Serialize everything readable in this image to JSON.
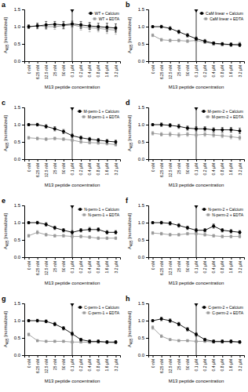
{
  "chart_data": [
    {
      "type": "line",
      "title": "a",
      "x_label": "M13 peptide concentration",
      "y_label": "A465 [normalized]",
      "categories": [
        "0 nM",
        "6.25 nM",
        "12.5 nM",
        "25 nM",
        "50 nM",
        "0.1 µM",
        "0.2 µM",
        "0.4 µM",
        "0.8 µM",
        "1.6 µM",
        "3.2 µM"
      ],
      "ylim": [
        0,
        1.5
      ],
      "yticks": [
        {
          "value": 0,
          "label": "0.0"
        },
        0.5,
        {
          "value": 1,
          "label": "1.0"
        },
        1.5
      ],
      "grid": false,
      "legend": "upper right",
      "series": [
        {
          "name": "WT + Calcium",
          "color": "#000000",
          "marker": "circle",
          "values": [
            1.0,
            1.02,
            1.05,
            1.07,
            1.05,
            1.08,
            1.05,
            1.02,
            1.0,
            0.98,
            0.96
          ],
          "errors": [
            0.05,
            0.08,
            0.1,
            0.08,
            0.1,
            0.08,
            0.1,
            0.1,
            0.1,
            0.12,
            0.12
          ]
        },
        {
          "name": "WT + EDTA",
          "color": "#999999",
          "marker": "square",
          "values": [
            1.0,
            1.03,
            1.0,
            1.0,
            1.03,
            1.05,
            1.0,
            0.97,
            0.95,
            0.92,
            0.9
          ],
          "errors": [
            0.05,
            0.06,
            0.08,
            0.08,
            0.1,
            0.08,
            0.1,
            0.12,
            0.1,
            0.12,
            0.12
          ]
        }
      ]
    },
    {
      "type": "line",
      "title": "b",
      "x_label": "M13 peptide concentration",
      "y_label": "A465 [normalized]",
      "categories": [
        "0 nM",
        "6.25 nM",
        "12.5 nM",
        "25 nM",
        "50 nM",
        "0.1 µM",
        "0.2 µM",
        "0.4 µM",
        "0.8 µM",
        "1.6 µM",
        "3.2 µM"
      ],
      "ylim": [
        0,
        1.5
      ],
      "yticks": [
        {
          "value": 0,
          "label": "0.0"
        },
        0.5,
        {
          "value": 1,
          "label": "1.0"
        },
        1.5
      ],
      "grid": false,
      "legend": "upper right",
      "series": [
        {
          "name": "CaM linear + Calcium",
          "color": "#000000",
          "marker": "circle",
          "values": [
            1.0,
            1.0,
            0.95,
            0.85,
            0.75,
            0.65,
            0.58,
            0.52,
            0.5,
            0.48,
            0.47
          ],
          "errors": [
            0.03,
            0.04,
            0.05,
            0.05,
            0.05,
            0.05,
            0.05,
            0.04,
            0.04,
            0.05,
            0.05
          ]
        },
        {
          "name": "CaM linear + EDTA",
          "color": "#999999",
          "marker": "square",
          "values": [
            0.75,
            0.62,
            0.6,
            0.6,
            0.58,
            0.6,
            0.55,
            0.5,
            0.48,
            0.48,
            0.5
          ],
          "errors": [
            0.04,
            0.04,
            0.04,
            0.04,
            0.04,
            0.05,
            0.04,
            0.04,
            0.04,
            0.04,
            0.05
          ]
        }
      ]
    },
    {
      "type": "line",
      "title": "c",
      "x_label": "M13 peptide concentration",
      "y_label": "A465 [normalized]",
      "categories": [
        "0 nM",
        "6.25 nM",
        "12.5 nM",
        "25 nM",
        "50 nM",
        "0.1 µM",
        "0.2 µM",
        "0.4 µM",
        "0.8 µM",
        "1.6 µM",
        "3.2 µM"
      ],
      "ylim": [
        0,
        1.5
      ],
      "yticks": [
        {
          "value": 0,
          "label": "0.0"
        },
        0.5,
        {
          "value": 1,
          "label": "1.0"
        },
        1.5
      ],
      "grid": false,
      "legend": "upper right",
      "series": [
        {
          "name": "M-perm-1 + Calcium",
          "color": "#000000",
          "marker": "circle",
          "values": [
            1.0,
            1.0,
            0.95,
            0.88,
            0.8,
            0.68,
            0.62,
            0.58,
            0.55,
            0.52,
            0.5
          ],
          "errors": [
            0.03,
            0.04,
            0.05,
            0.06,
            0.06,
            0.05,
            0.05,
            0.05,
            0.05,
            0.05,
            0.05
          ]
        },
        {
          "name": "M-perm-1 + EDTA",
          "color": "#999999",
          "marker": "square",
          "values": [
            0.62,
            0.6,
            0.58,
            0.6,
            0.58,
            0.55,
            0.5,
            0.48,
            0.47,
            0.45,
            0.42
          ],
          "errors": [
            0.04,
            0.04,
            0.04,
            0.04,
            0.04,
            0.04,
            0.04,
            0.04,
            0.04,
            0.04,
            0.04
          ]
        }
      ]
    },
    {
      "type": "line",
      "title": "d",
      "x_label": "M13 peptide concentration",
      "y_label": "A465 [normalized]",
      "categories": [
        "0 nM",
        "6.25 nM",
        "12.5 nM",
        "25 nM",
        "50 nM",
        "0.1 µM",
        "0.2 µM",
        "0.4 µM",
        "0.8 µM",
        "1.6 µM",
        "3.2 µM"
      ],
      "ylim": [
        0,
        1.5
      ],
      "yticks": [
        {
          "value": 0,
          "label": "0.0"
        },
        0.5,
        {
          "value": 1,
          "label": "1.0"
        },
        1.5
      ],
      "grid": false,
      "legend": "upper right",
      "series": [
        {
          "name": "M-perm-2 + Calcium",
          "color": "#000000",
          "marker": "circle",
          "values": [
            1.0,
            1.0,
            0.98,
            0.95,
            0.9,
            0.88,
            0.88,
            0.85,
            0.85,
            0.85,
            0.82
          ],
          "errors": [
            0.03,
            0.05,
            0.05,
            0.06,
            0.06,
            0.06,
            0.06,
            0.06,
            0.07,
            0.07,
            0.08
          ]
        },
        {
          "name": "M-perm-2 + EDTA",
          "color": "#999999",
          "marker": "square",
          "values": [
            0.75,
            0.72,
            0.72,
            0.7,
            0.72,
            0.7,
            0.72,
            0.7,
            0.68,
            0.65,
            0.62
          ],
          "errors": [
            0.05,
            0.05,
            0.06,
            0.06,
            0.06,
            0.06,
            0.06,
            0.06,
            0.06,
            0.06,
            0.06
          ]
        }
      ]
    },
    {
      "type": "line",
      "title": "e",
      "x_label": "M13 peptide concentration",
      "y_label": "A465 [normalized]",
      "categories": [
        "0 nM",
        "6.25 nM",
        "12.5 nM",
        "25 nM",
        "50 nM",
        "0.1 µM",
        "0.2 µM",
        "0.4 µM",
        "0.8 µM",
        "1.6 µM",
        "3.2 µM"
      ],
      "ylim": [
        0,
        1.5
      ],
      "yticks": [
        {
          "value": 0,
          "label": "0.0"
        },
        0.5,
        {
          "value": 1,
          "label": "1.0"
        },
        1.5
      ],
      "grid": false,
      "legend": "upper right",
      "series": [
        {
          "name": "N-perm-1 + Calcium",
          "color": "#000000",
          "marker": "circle",
          "values": [
            1.0,
            1.0,
            0.95,
            0.85,
            0.78,
            0.72,
            0.78,
            0.8,
            0.8,
            0.72,
            0.72
          ],
          "errors": [
            0.03,
            0.04,
            0.05,
            0.05,
            0.05,
            0.05,
            0.05,
            0.06,
            0.05,
            0.05,
            0.05
          ]
        },
        {
          "name": "N-perm-1 + EDTA",
          "color": "#999999",
          "marker": "square",
          "values": [
            0.62,
            0.72,
            0.65,
            0.62,
            0.62,
            0.6,
            0.6,
            0.58,
            0.55,
            0.55,
            0.55
          ],
          "errors": [
            0.04,
            0.05,
            0.04,
            0.04,
            0.04,
            0.04,
            0.04,
            0.04,
            0.04,
            0.04,
            0.04
          ]
        }
      ]
    },
    {
      "type": "line",
      "title": "f",
      "x_label": "M13 peptide concentration",
      "y_label": "A465 [normalized]",
      "categories": [
        "0 nM",
        "6.25 nM",
        "12.5 nM",
        "25 nM",
        "50 nM",
        "0.1 µM",
        "0.2 µM",
        "0.4 µM",
        "0.8 µM",
        "1.6 µM",
        "3.2 µM"
      ],
      "ylim": [
        0,
        1.5
      ],
      "yticks": [
        {
          "value": 0,
          "label": "0.0"
        },
        0.5,
        {
          "value": 1,
          "label": "1.0"
        },
        1.5
      ],
      "grid": false,
      "legend": "upper right",
      "series": [
        {
          "name": "N-perm-2 + Calcium",
          "color": "#000000",
          "marker": "circle",
          "values": [
            1.0,
            1.0,
            0.98,
            0.92,
            0.85,
            0.78,
            0.78,
            0.9,
            0.78,
            0.75,
            0.72
          ],
          "errors": [
            0.03,
            0.04,
            0.05,
            0.05,
            0.05,
            0.05,
            0.05,
            0.06,
            0.05,
            0.05,
            0.05
          ]
        },
        {
          "name": "N-perm-2 + EDTA",
          "color": "#999999",
          "marker": "square",
          "values": [
            0.7,
            0.68,
            0.65,
            0.65,
            0.68,
            0.68,
            0.65,
            0.62,
            0.6,
            0.6,
            0.6
          ],
          "errors": [
            0.04,
            0.04,
            0.04,
            0.04,
            0.04,
            0.04,
            0.04,
            0.04,
            0.04,
            0.04,
            0.04
          ]
        }
      ]
    },
    {
      "type": "line",
      "title": "g",
      "x_label": "M13 peptide concentration",
      "y_label": "A465 [normalized]",
      "categories": [
        "0 nM",
        "6.25 nM",
        "12.5 nM",
        "25 nM",
        "50 nM",
        "0.1 µM",
        "0.2 µM",
        "0.4 µM",
        "0.8 µM",
        "1.6 µM",
        "3.2 µM"
      ],
      "ylim": [
        0,
        1.5
      ],
      "yticks": [
        {
          "value": 0,
          "label": "0.0"
        },
        0.5,
        {
          "value": 1,
          "label": "1.0"
        },
        1.5
      ],
      "grid": false,
      "legend": "upper right",
      "series": [
        {
          "name": "C-perm-1 + Calcium",
          "color": "#000000",
          "marker": "circle",
          "values": [
            1.0,
            1.0,
            0.98,
            0.9,
            0.78,
            0.62,
            0.45,
            0.4,
            0.4,
            0.38,
            0.38
          ],
          "errors": [
            0.03,
            0.04,
            0.04,
            0.05,
            0.05,
            0.05,
            0.04,
            0.04,
            0.04,
            0.04,
            0.04
          ]
        },
        {
          "name": "C-perm-1 + EDTA",
          "color": "#999999",
          "marker": "square",
          "values": [
            0.6,
            0.42,
            0.4,
            0.4,
            0.4,
            0.38,
            0.38,
            0.37,
            0.38,
            0.37,
            0.36
          ],
          "errors": [
            0.04,
            0.03,
            0.03,
            0.03,
            0.03,
            0.03,
            0.03,
            0.03,
            0.03,
            0.03,
            0.03
          ]
        }
      ]
    },
    {
      "type": "line",
      "title": "h",
      "x_label": "M13 peptide concentration",
      "y_label": "A465 [normalized]",
      "categories": [
        "0 nM",
        "6.25 nM",
        "12.5 nM",
        "25 nM",
        "50 nM",
        "0.1 µM",
        "0.2 µM",
        "0.4 µM",
        "0.8 µM",
        "1.6 µM",
        "3.2 µM"
      ],
      "ylim": [
        0,
        1.5
      ],
      "yticks": [
        {
          "value": 0,
          "label": "0.0"
        },
        0.5,
        {
          "value": 1,
          "label": "1.0"
        },
        1.5
      ],
      "grid": false,
      "legend": "upper right",
      "series": [
        {
          "name": "C-perm-2 + Calcium",
          "color": "#000000",
          "marker": "circle",
          "values": [
            1.0,
            1.05,
            1.0,
            0.9,
            0.75,
            0.6,
            0.45,
            0.4,
            0.4,
            0.4,
            0.38
          ],
          "errors": [
            0.03,
            0.05,
            0.05,
            0.05,
            0.05,
            0.05,
            0.04,
            0.04,
            0.04,
            0.04,
            0.04
          ]
        },
        {
          "name": "C-perm-2 + EDTA",
          "color": "#999999",
          "marker": "square",
          "values": [
            0.8,
            0.55,
            0.45,
            0.42,
            0.42,
            0.4,
            0.4,
            0.38,
            0.38,
            0.38,
            0.38
          ],
          "errors": [
            0.05,
            0.04,
            0.03,
            0.03,
            0.03,
            0.03,
            0.03,
            0.03,
            0.03,
            0.03,
            0.03
          ]
        }
      ]
    }
  ]
}
